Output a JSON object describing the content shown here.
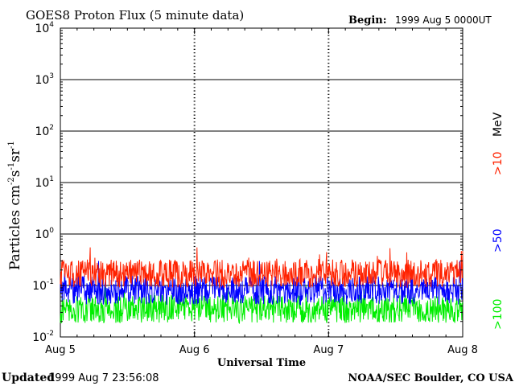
{
  "header": {
    "title": "GOES8 Proton Flux (5 minute data)",
    "begin_label": "Begin:",
    "begin_value": "1999 Aug 5 0000UT"
  },
  "footer": {
    "updated_label": "Updated",
    "updated_value": "1999 Aug  7 23:56:08",
    "credit": "NOAA/SEC Boulder, CO USA"
  },
  "chart_data": {
    "type": "line",
    "title": "GOES8 Proton Flux (5 minute data)",
    "xlabel": "Universal Time",
    "ylabel_base": "Particles cm",
    "ylabel_exponents": [
      "-2",
      "-1",
      "-1"
    ],
    "ylabel_parts": [
      "s",
      "sr"
    ],
    "y_scale": "log",
    "ylim": [
      0.01,
      10000
    ],
    "y_ticks": [
      {
        "base": "10",
        "exp": "-2",
        "value": 0.01
      },
      {
        "base": "10",
        "exp": "-1",
        "value": 0.1
      },
      {
        "base": "10",
        "exp": "0",
        "value": 1
      },
      {
        "base": "10",
        "exp": "1",
        "value": 10
      },
      {
        "base": "10",
        "exp": "2",
        "value": 100
      },
      {
        "base": "10",
        "exp": "3",
        "value": 1000
      },
      {
        "base": "10",
        "exp": "4",
        "value": 10000
      }
    ],
    "x_ticks": [
      "Aug 5",
      "Aug 6",
      "Aug 7",
      "Aug 8"
    ],
    "xlim": [
      "1999-08-05 00:00",
      "1999-08-08 00:00"
    ],
    "grid": true,
    "legend_position": "right",
    "legend_unit": "MeV",
    "series": [
      {
        "name": ">10",
        "color": "#ff2200",
        "typical_value": 0.17,
        "range": [
          0.09,
          0.55
        ]
      },
      {
        "name": ">50",
        "color": "#0000ff",
        "typical_value": 0.08,
        "range": [
          0.04,
          0.3
        ]
      },
      {
        "name": ">100",
        "color": "#00ee00",
        "typical_value": 0.035,
        "range": [
          0.016,
          0.1
        ]
      }
    ]
  }
}
